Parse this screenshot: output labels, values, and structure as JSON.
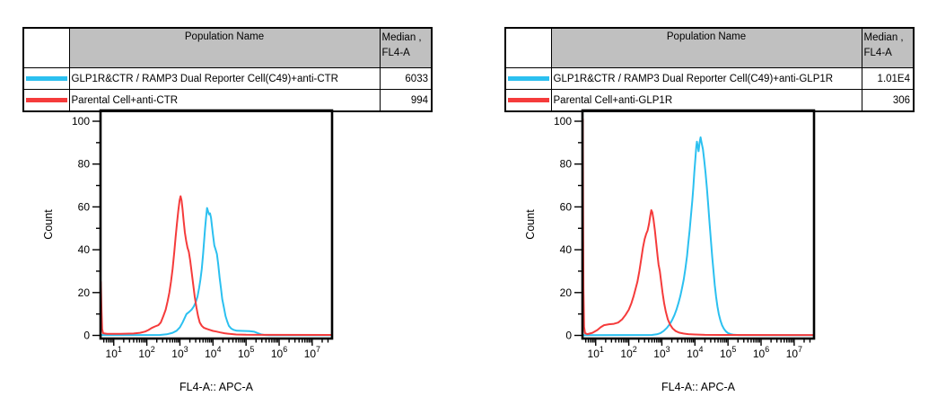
{
  "colors": {
    "cyan": "#2bc0f0",
    "red": "#f53b3b",
    "table_header_bg": "#c0c0c0",
    "axis": "#000000"
  },
  "panels": [
    {
      "table": {
        "header": {
          "population": "Population Name",
          "median_line1": "Median ,",
          "median_line2": "FL4-A"
        },
        "rows": [
          {
            "color": "cyan",
            "name": "GLP1R&CTR / RAMP3 Dual Reporter Cell(C49)+anti-CTR",
            "median": "6033"
          },
          {
            "color": "red",
            "name": "Parental Cell+anti-CTR",
            "median": "994"
          }
        ]
      }
    },
    {
      "table": {
        "header": {
          "population": "Population Name",
          "median_line1": "Median ,",
          "median_line2": "FL4-A"
        },
        "rows": [
          {
            "color": "cyan",
            "name": "GLP1R&CTR / RAMP3 Dual Reporter Cell(C49)+anti-GLP1R",
            "median": "1.01E4"
          },
          {
            "color": "red",
            "name": "Parental Cell+anti-GLP1R",
            "median": "306"
          }
        ]
      }
    }
  ],
  "chart_data": [
    {
      "type": "line",
      "subtype": "flow-cytometry-histogram",
      "xlabel": "FL4-A:: APC-A",
      "ylabel": "Count",
      "x_scale": "log",
      "x_range_log10": [
        0.6,
        7.6
      ],
      "x_tick_exponents": [
        1,
        2,
        3,
        4,
        5,
        6,
        7
      ],
      "x_tick_base": "10",
      "ylim": [
        0,
        100
      ],
      "y_ticks": [
        0,
        20,
        40,
        60,
        80,
        100
      ],
      "y_minor_step": 10,
      "grid": false,
      "legend": "table-above",
      "series": [
        {
          "name": "GLP1R&CTR / RAMP3 Dual Reporter Cell(C49)+anti-CTR",
          "color_key": "cyan",
          "median_fl4a": "6033",
          "points_log10x_count": [
            [
              0.6,
              0.15
            ],
            [
              2.4,
              0.2
            ],
            [
              2.6,
              0.5
            ],
            [
              2.78,
              1.2
            ],
            [
              2.9,
              2.2
            ],
            [
              3.0,
              3.8
            ],
            [
              3.08,
              6
            ],
            [
              3.14,
              8
            ],
            [
              3.2,
              10
            ],
            [
              3.28,
              11
            ],
            [
              3.35,
              12
            ],
            [
              3.42,
              13.5
            ],
            [
              3.48,
              15.5
            ],
            [
              3.53,
              18
            ],
            [
              3.58,
              22
            ],
            [
              3.62,
              26
            ],
            [
              3.66,
              31
            ],
            [
              3.7,
              38
            ],
            [
              3.73,
              44
            ],
            [
              3.76,
              50
            ],
            [
              3.79,
              55
            ],
            [
              3.82,
              59.5
            ],
            [
              3.85,
              58
            ],
            [
              3.88,
              56.5
            ],
            [
              3.91,
              57
            ],
            [
              3.94,
              55
            ],
            [
              3.97,
              51
            ],
            [
              4.0,
              47
            ],
            [
              4.04,
              42
            ],
            [
              4.08,
              40
            ],
            [
              4.12,
              38
            ],
            [
              4.16,
              33
            ],
            [
              4.2,
              27
            ],
            [
              4.24,
              22
            ],
            [
              4.28,
              17
            ],
            [
              4.33,
              13
            ],
            [
              4.38,
              9
            ],
            [
              4.43,
              6.5
            ],
            [
              4.48,
              4.5
            ],
            [
              4.55,
              3.2
            ],
            [
              4.62,
              2.6
            ],
            [
              4.72,
              2.2
            ],
            [
              4.9,
              2.1
            ],
            [
              5.1,
              2.0
            ],
            [
              5.25,
              1.7
            ],
            [
              5.35,
              1.1
            ],
            [
              5.45,
              0.5
            ],
            [
              5.55,
              0.2
            ],
            [
              5.7,
              0.1
            ],
            [
              7.58,
              0.1
            ]
          ]
        },
        {
          "name": "Parental Cell+anti-CTR",
          "color_key": "red",
          "median_fl4a": "994",
          "points_log10x_count": [
            [
              0.6,
              0
            ],
            [
              0.61,
              25
            ],
            [
              0.63,
              12
            ],
            [
              0.65,
              3
            ],
            [
              0.68,
              1
            ],
            [
              0.8,
              0.7
            ],
            [
              1.2,
              0.7
            ],
            [
              1.6,
              0.9
            ],
            [
              1.8,
              1.2
            ],
            [
              1.95,
              1.8
            ],
            [
              2.05,
              2.5
            ],
            [
              2.15,
              3.5
            ],
            [
              2.25,
              4.2
            ],
            [
              2.35,
              4.8
            ],
            [
              2.42,
              6
            ],
            [
              2.5,
              9
            ],
            [
              2.57,
              12
            ],
            [
              2.63,
              16
            ],
            [
              2.68,
              20
            ],
            [
              2.73,
              25
            ],
            [
              2.78,
              31
            ],
            [
              2.83,
              39
            ],
            [
              2.87,
              46
            ],
            [
              2.91,
              52
            ],
            [
              2.95,
              58
            ],
            [
              2.99,
              63
            ],
            [
              3.02,
              65
            ],
            [
              3.05,
              63
            ],
            [
              3.08,
              59
            ],
            [
              3.11,
              54
            ],
            [
              3.15,
              48
            ],
            [
              3.19,
              44
            ],
            [
              3.23,
              41
            ],
            [
              3.27,
              39
            ],
            [
              3.31,
              35
            ],
            [
              3.35,
              30
            ],
            [
              3.4,
              24
            ],
            [
              3.45,
              18
            ],
            [
              3.5,
              13
            ],
            [
              3.55,
              9
            ],
            [
              3.6,
              6
            ],
            [
              3.66,
              4.5
            ],
            [
              3.72,
              3.6
            ],
            [
              3.8,
              3.1
            ],
            [
              3.9,
              2.6
            ],
            [
              4.0,
              2.1
            ],
            [
              4.1,
              1.8
            ],
            [
              4.22,
              1.4
            ],
            [
              4.35,
              1.0
            ],
            [
              4.5,
              0.7
            ],
            [
              4.7,
              0.4
            ],
            [
              5.0,
              0.3
            ],
            [
              5.6,
              0.25
            ],
            [
              7.58,
              0.2
            ]
          ]
        }
      ]
    },
    {
      "type": "line",
      "subtype": "flow-cytometry-histogram",
      "xlabel": "FL4-A:: APC-A",
      "ylabel": "Count",
      "x_scale": "log",
      "x_range_log10": [
        0.6,
        7.6
      ],
      "x_tick_exponents": [
        1,
        2,
        3,
        4,
        5,
        6,
        7
      ],
      "x_tick_base": "10",
      "ylim": [
        0,
        100
      ],
      "y_ticks": [
        0,
        20,
        40,
        60,
        80,
        100
      ],
      "y_minor_step": 10,
      "grid": false,
      "legend": "table-above",
      "series": [
        {
          "name": "GLP1R&CTR / RAMP3 Dual Reporter Cell(C49)+anti-GLP1R",
          "color_key": "cyan",
          "median_fl4a": "1.01E4",
          "points_log10x_count": [
            [
              0.6,
              0.1
            ],
            [
              2.7,
              0.2
            ],
            [
              2.85,
              0.5
            ],
            [
              2.95,
              1
            ],
            [
              3.05,
              2
            ],
            [
              3.15,
              3.5
            ],
            [
              3.25,
              5.5
            ],
            [
              3.32,
              7.5
            ],
            [
              3.38,
              9.5
            ],
            [
              3.44,
              12
            ],
            [
              3.5,
              15
            ],
            [
              3.56,
              18.5
            ],
            [
              3.61,
              22
            ],
            [
              3.66,
              26
            ],
            [
              3.71,
              31
            ],
            [
              3.76,
              37
            ],
            [
              3.8,
              43
            ],
            [
              3.84,
              49
            ],
            [
              3.88,
              56
            ],
            [
              3.92,
              63
            ],
            [
              3.95,
              69
            ],
            [
              3.98,
              76
            ],
            [
              4.01,
              82
            ],
            [
              4.04,
              88
            ],
            [
              4.06,
              90.5
            ],
            [
              4.09,
              88
            ],
            [
              4.11,
              86
            ],
            [
              4.14,
              90
            ],
            [
              4.17,
              92.5
            ],
            [
              4.2,
              90
            ],
            [
              4.24,
              87
            ],
            [
              4.28,
              82
            ],
            [
              4.32,
              76
            ],
            [
              4.36,
              69
            ],
            [
              4.4,
              61
            ],
            [
              4.44,
              53
            ],
            [
              4.48,
              45
            ],
            [
              4.52,
              37
            ],
            [
              4.56,
              30
            ],
            [
              4.6,
              23.5
            ],
            [
              4.64,
              18
            ],
            [
              4.68,
              13.5
            ],
            [
              4.72,
              10
            ],
            [
              4.77,
              7
            ],
            [
              4.82,
              4.8
            ],
            [
              4.88,
              3
            ],
            [
              4.94,
              1.8
            ],
            [
              5.0,
              1.1
            ],
            [
              5.08,
              0.6
            ],
            [
              5.18,
              0.3
            ],
            [
              5.32,
              0.15
            ],
            [
              7.58,
              0.1
            ]
          ]
        },
        {
          "name": "Parental Cell+anti-GLP1R",
          "color_key": "red",
          "median_fl4a": "306",
          "points_log10x_count": [
            [
              0.6,
              0
            ],
            [
              0.61,
              101
            ],
            [
              0.62,
              60
            ],
            [
              0.63,
              22
            ],
            [
              0.65,
              4
            ],
            [
              0.68,
              1
            ],
            [
              0.75,
              0.6
            ],
            [
              0.9,
              1.2
            ],
            [
              1.05,
              2.5
            ],
            [
              1.15,
              3.8
            ],
            [
              1.25,
              4.8
            ],
            [
              1.4,
              5.2
            ],
            [
              1.55,
              5.4
            ],
            [
              1.68,
              6
            ],
            [
              1.8,
              7.5
            ],
            [
              1.9,
              9.5
            ],
            [
              2.0,
              12
            ],
            [
              2.08,
              15
            ],
            [
              2.15,
              18.5
            ],
            [
              2.2,
              21.5
            ],
            [
              2.26,
              25
            ],
            [
              2.32,
              30
            ],
            [
              2.38,
              36
            ],
            [
              2.43,
              41
            ],
            [
              2.48,
              45
            ],
            [
              2.53,
              47.5
            ],
            [
              2.57,
              49
            ],
            [
              2.61,
              52
            ],
            [
              2.65,
              56
            ],
            [
              2.68,
              58.5
            ],
            [
              2.71,
              57.5
            ],
            [
              2.75,
              54
            ],
            [
              2.79,
              49
            ],
            [
              2.83,
              43
            ],
            [
              2.87,
              37
            ],
            [
              2.9,
              33
            ],
            [
              2.94,
              30
            ],
            [
              2.98,
              25
            ],
            [
              3.02,
              20
            ],
            [
              3.07,
              15
            ],
            [
              3.12,
              11
            ],
            [
              3.18,
              7.5
            ],
            [
              3.25,
              5
            ],
            [
              3.33,
              3.2
            ],
            [
              3.42,
              2
            ],
            [
              3.52,
              1.3
            ],
            [
              3.65,
              0.9
            ],
            [
              3.8,
              0.6
            ],
            [
              4.0,
              0.4
            ],
            [
              4.3,
              0.25
            ],
            [
              4.8,
              0.2
            ],
            [
              7.58,
              0.15
            ]
          ]
        }
      ]
    }
  ]
}
